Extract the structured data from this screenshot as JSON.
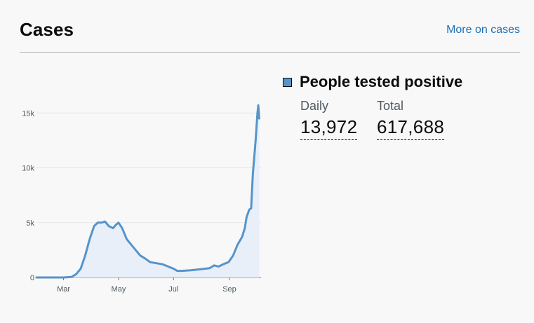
{
  "card": {
    "title": "Cases",
    "more_link": "More on cases"
  },
  "legend": {
    "label": "People tested positive",
    "color": "#5694ca"
  },
  "metrics": {
    "daily_label": "Daily",
    "daily_value": "13,972",
    "total_label": "Total",
    "total_value": "617,688"
  },
  "colors": {
    "line": "#5694ca",
    "area": "#e8eff8",
    "link": "#1d70b8",
    "grid": "#e6e6e6"
  },
  "chart_data": {
    "type": "area",
    "title": "",
    "xlabel": "",
    "ylabel": "",
    "ylim": [
      0,
      17000
    ],
    "yticks": [
      0,
      5000,
      10000,
      15000
    ],
    "ytick_labels": [
      "0",
      "5k",
      "10k",
      "15k"
    ],
    "xticks": [
      {
        "date": "2020-03-01",
        "label": "Mar"
      },
      {
        "date": "2020-05-01",
        "label": "May"
      },
      {
        "date": "2020-07-01",
        "label": "Jul"
      },
      {
        "date": "2020-09-01",
        "label": "Sep"
      }
    ],
    "xlim": [
      "2020-01-31",
      "2020-10-06"
    ],
    "grid": true,
    "series": [
      {
        "name": "People tested positive",
        "points": [
          [
            "2020-01-31",
            0
          ],
          [
            "2020-02-15",
            0
          ],
          [
            "2020-03-01",
            0
          ],
          [
            "2020-03-10",
            50
          ],
          [
            "2020-03-15",
            300
          ],
          [
            "2020-03-20",
            800
          ],
          [
            "2020-03-25",
            2000
          ],
          [
            "2020-03-30",
            3500
          ],
          [
            "2020-04-04",
            4700
          ],
          [
            "2020-04-08",
            5000
          ],
          [
            "2020-04-12",
            5000
          ],
          [
            "2020-04-16",
            5100
          ],
          [
            "2020-04-20",
            4700
          ],
          [
            "2020-04-25",
            4500
          ],
          [
            "2020-04-28",
            4800
          ],
          [
            "2020-05-01",
            5000
          ],
          [
            "2020-05-05",
            4500
          ],
          [
            "2020-05-10",
            3500
          ],
          [
            "2020-05-15",
            3000
          ],
          [
            "2020-05-20",
            2500
          ],
          [
            "2020-05-25",
            2000
          ],
          [
            "2020-05-31",
            1700
          ],
          [
            "2020-06-05",
            1400
          ],
          [
            "2020-06-12",
            1300
          ],
          [
            "2020-06-19",
            1200
          ],
          [
            "2020-06-25",
            1000
          ],
          [
            "2020-07-01",
            800
          ],
          [
            "2020-07-05",
            600
          ],
          [
            "2020-07-10",
            600
          ],
          [
            "2020-07-20",
            650
          ],
          [
            "2020-07-31",
            750
          ],
          [
            "2020-08-10",
            850
          ],
          [
            "2020-08-15",
            1100
          ],
          [
            "2020-08-20",
            1000
          ],
          [
            "2020-08-25",
            1200
          ],
          [
            "2020-08-31",
            1400
          ],
          [
            "2020-09-05",
            2000
          ],
          [
            "2020-09-10",
            3000
          ],
          [
            "2020-09-15",
            3700
          ],
          [
            "2020-09-18",
            4500
          ],
          [
            "2020-09-20",
            5500
          ],
          [
            "2020-09-23",
            6200
          ],
          [
            "2020-09-25",
            6300
          ],
          [
            "2020-09-27",
            9500
          ],
          [
            "2020-09-30",
            12500
          ],
          [
            "2020-10-02",
            15000
          ],
          [
            "2020-10-03",
            15700
          ],
          [
            "2020-10-04",
            14500
          ]
        ]
      }
    ]
  }
}
